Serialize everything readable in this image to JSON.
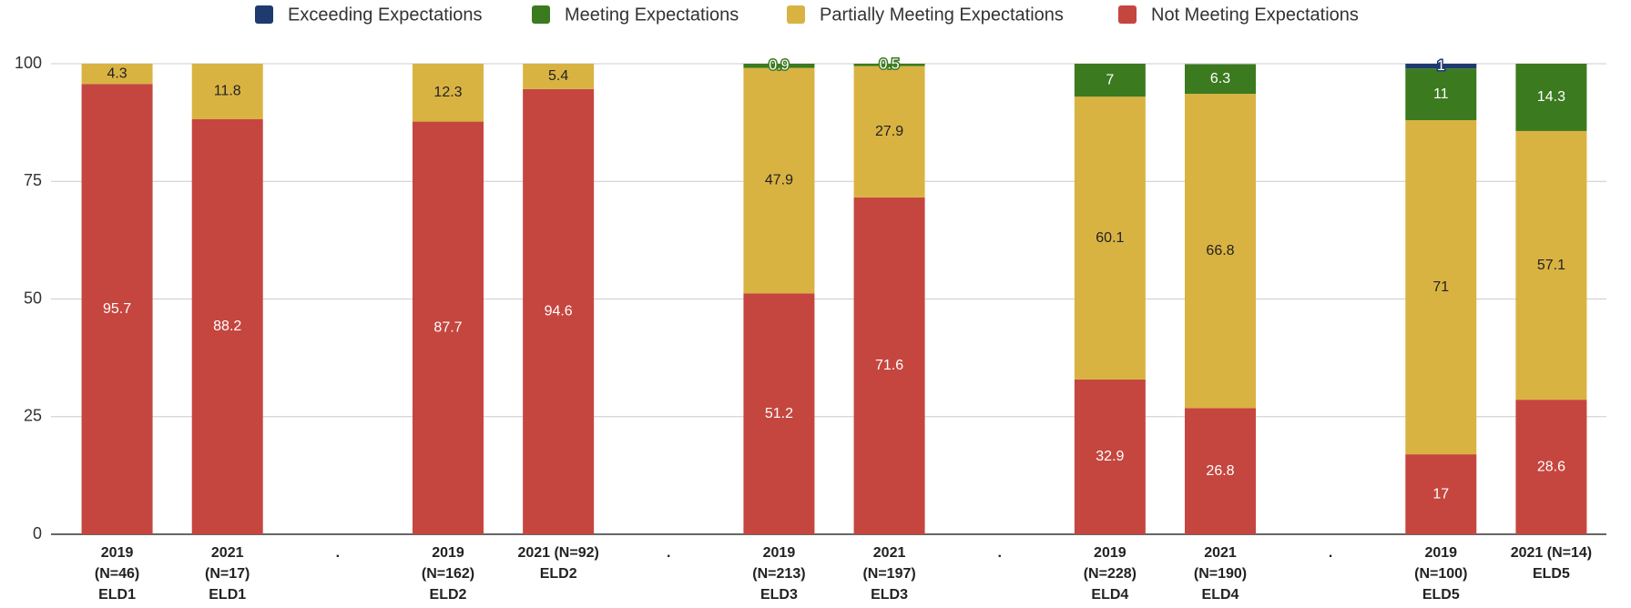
{
  "chart_data": {
    "type": "stacked-bar",
    "categories": [
      "2019\n(N=46)\nELD1",
      "2021\n(N=17)\nELD1",
      ".",
      "2019\n(N=162)\nELD2",
      "2021 (N=92)\nELD2",
      ".",
      "2019\n(N=213)\nELD3",
      "2021\n(N=197)\nELD3",
      ".",
      "2019\n(N=228)\nELD4",
      "2021\n(N=190)\nELD4",
      ".",
      "2019\n(N=100)\nELD5",
      "2021 (N=14)\nELD5"
    ],
    "series": [
      {
        "name": "Exceeding Expectations",
        "color": "#1f3a6e",
        "values": [
          null,
          null,
          null,
          null,
          null,
          null,
          null,
          null,
          null,
          null,
          null,
          null,
          1,
          null
        ]
      },
      {
        "name": "Meeting Expectations",
        "color": "#3c7a20",
        "values": [
          null,
          null,
          null,
          null,
          null,
          null,
          0.9,
          0.5,
          null,
          7,
          6.3,
          null,
          11,
          14.3
        ]
      },
      {
        "name": "Partially Meeting Expectations",
        "color": "#d9b342",
        "values": [
          4.3,
          11.8,
          null,
          12.3,
          5.4,
          null,
          47.9,
          27.9,
          null,
          60.1,
          66.8,
          null,
          71,
          57.1
        ]
      },
      {
        "name": "Not Meeting Expectations",
        "color": "#c5463f",
        "values": [
          95.7,
          88.2,
          null,
          87.7,
          94.6,
          null,
          51.2,
          71.6,
          null,
          32.9,
          26.8,
          null,
          17,
          28.6
        ]
      }
    ],
    "ylim": [
      0,
      100
    ],
    "yticks": [
      0,
      25,
      50,
      75,
      100
    ],
    "grid": true,
    "legend": "top"
  }
}
